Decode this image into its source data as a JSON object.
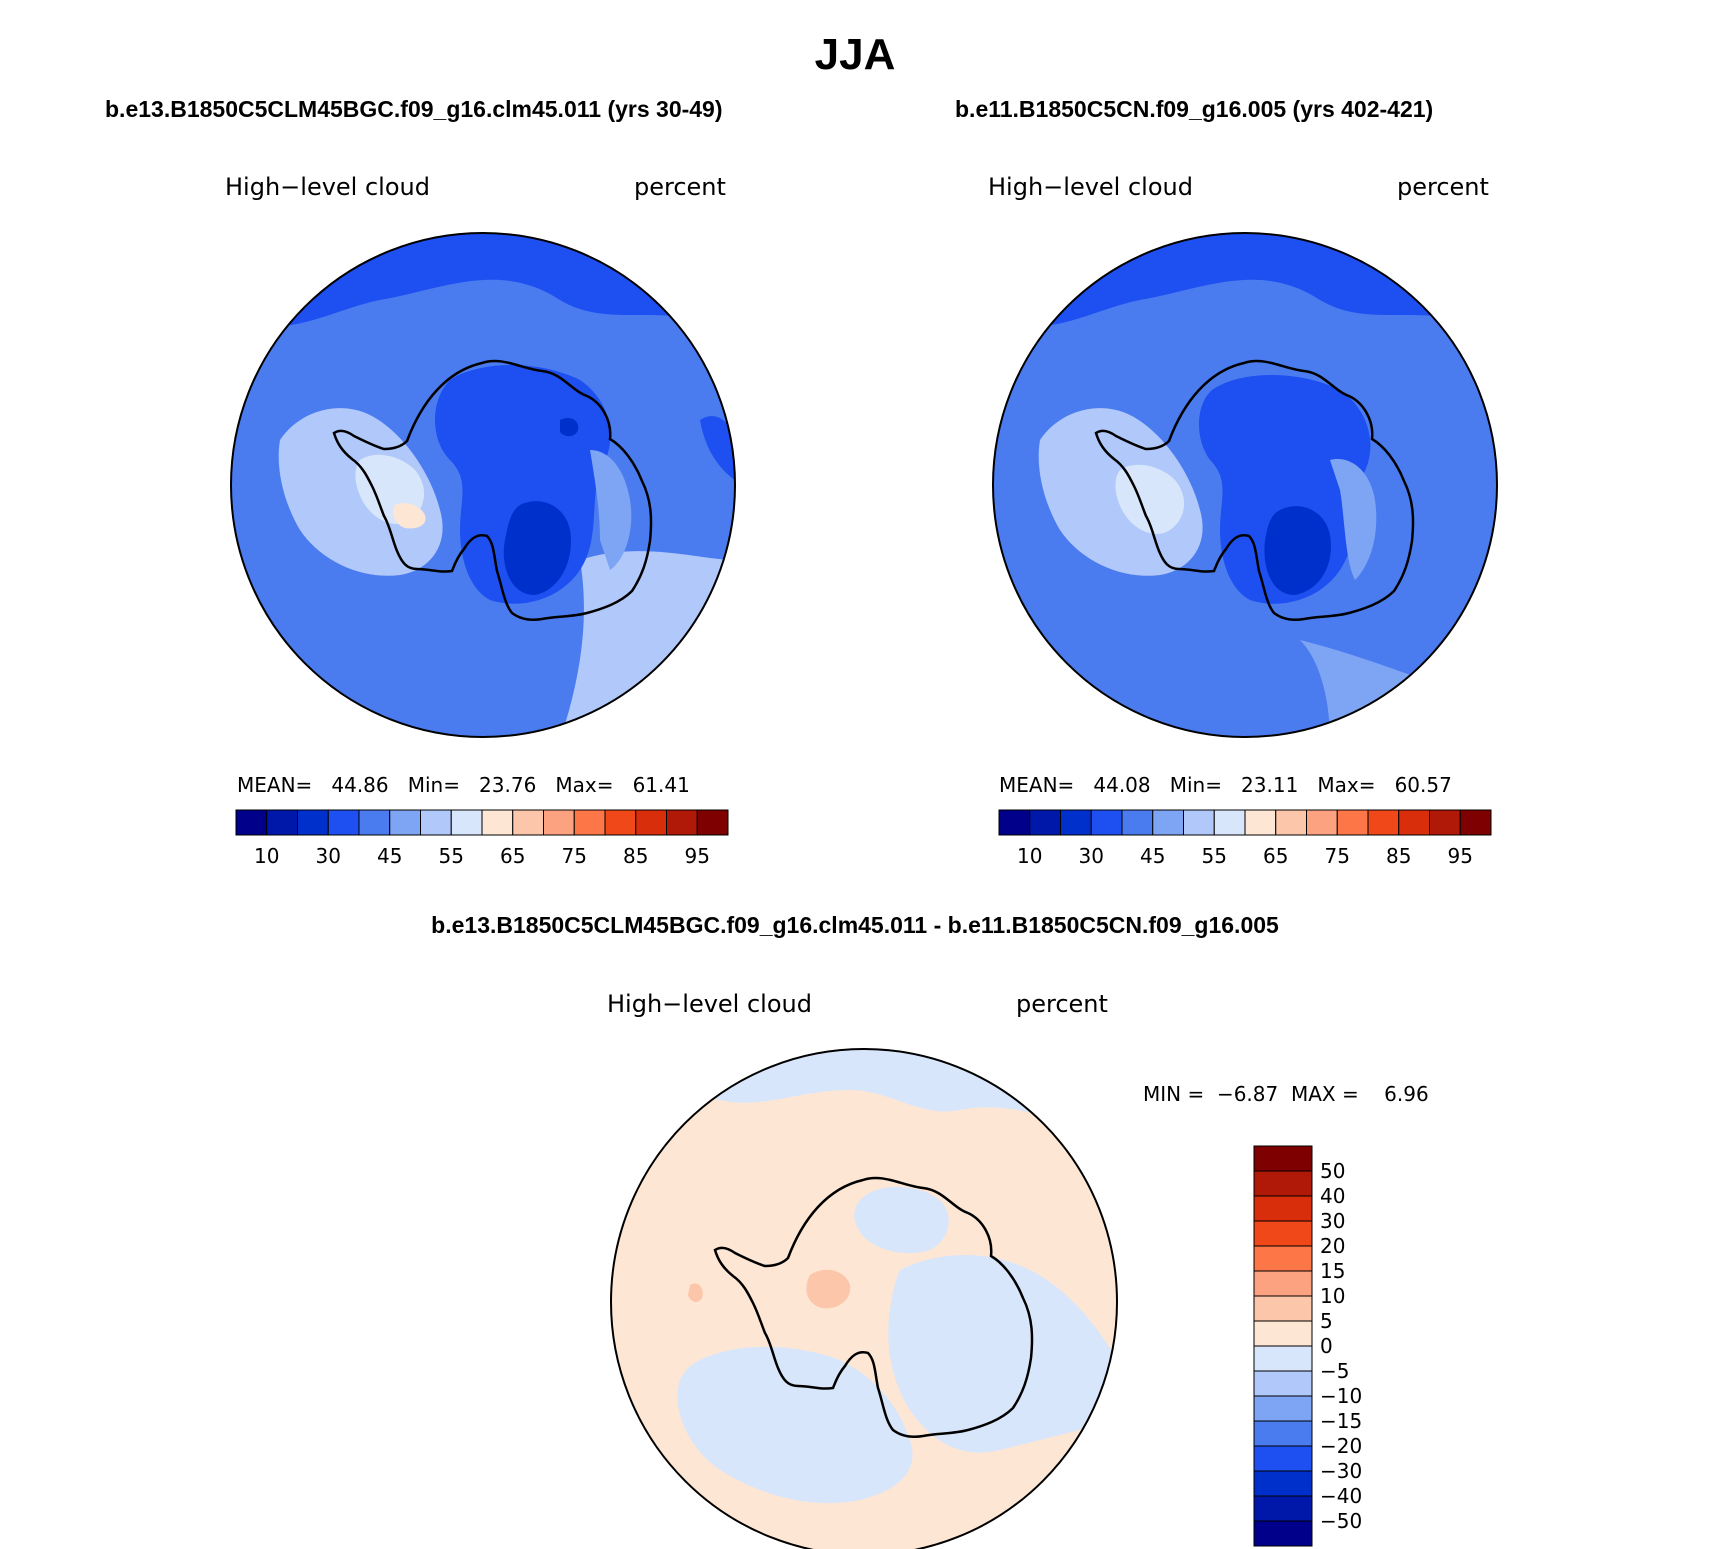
{
  "figure": {
    "title": "JJA",
    "panels": [
      {
        "id": "left",
        "run_title": "b.e13.B1850C5CLM45BGC.f09_g16.clm45.011 (yrs 30-49)",
        "variable": "High−level cloud",
        "units": "percent",
        "stats": {
          "mean_label": "MEAN=",
          "mean": "44.86",
          "min_label": "Min=",
          "min": "23.76",
          "max_label": "Max=",
          "max": "61.41"
        }
      },
      {
        "id": "right",
        "run_title": "b.e11.B1850C5CN.f09_g16.005 (yrs 402-421)",
        "variable": "High−level cloud",
        "units": "percent",
        "stats": {
          "mean_label": "MEAN=",
          "mean": "44.08",
          "min_label": "Min=",
          "min": "23.11",
          "max_label": "Max=",
          "max": "60.57"
        }
      }
    ],
    "diff": {
      "title": "b.e13.B1850C5CLM45BGC.f09_g16.clm45.011 - b.e11.B1850C5CN.f09_g16.005",
      "variable": "High−level cloud",
      "units": "percent",
      "stats": {
        "min_label": "MIN =",
        "min": "−6.87",
        "max_label": "MAX =",
        "max": "6.96"
      }
    },
    "colorbar": {
      "colors": [
        "#00008a",
        "#0018aa",
        "#0030cc",
        "#1e4ff0",
        "#4a7cf0",
        "#7ea4f4",
        "#b0c8fa",
        "#d8e6fb",
        "#fde6d4",
        "#fcc6aa",
        "#fca280",
        "#fc7648",
        "#f04818",
        "#d82e0c",
        "#b01808",
        "#7e0000"
      ],
      "tick_labels": [
        "10",
        "30",
        "45",
        "55",
        "65",
        "75",
        "85",
        "95"
      ]
    },
    "diff_colorbar": {
      "colors": [
        "#7e0000",
        "#b01808",
        "#d82e0c",
        "#f04818",
        "#fc7648",
        "#fca280",
        "#fcc6aa",
        "#fde6d4",
        "#d8e6fb",
        "#b0c8fa",
        "#7ea4f4",
        "#4a7cf0",
        "#1e4ff0",
        "#0030cc",
        "#0018aa",
        "#00008a"
      ],
      "tick_labels": [
        "50",
        "40",
        "30",
        "20",
        "15",
        "10",
        "5",
        "0",
        "−5",
        "−10",
        "−15",
        "−20",
        "−30",
        "−40",
        "−50"
      ]
    }
  }
}
